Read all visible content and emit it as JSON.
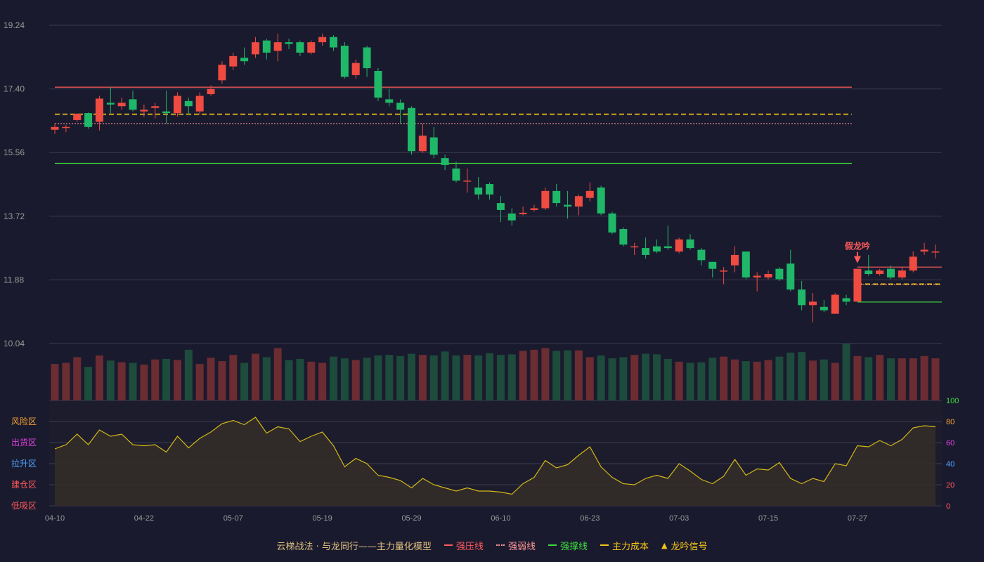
{
  "chart_data": {
    "type": "candlestick",
    "x_labels": [
      "04-10",
      "04-22",
      "05-07",
      "05-19",
      "05-29",
      "06-10",
      "06-23",
      "07-03",
      "07-15",
      "07-27"
    ],
    "y_ticks": [
      "19.24",
      "17.40",
      "15.56",
      "13.72",
      "11.88",
      "10.04"
    ],
    "ylim": [
      10.04,
      19.24
    ],
    "candles": [
      [
        16.22,
        16.3,
        16.4,
        16.1
      ],
      [
        16.28,
        16.3,
        16.36,
        16.15
      ],
      [
        16.5,
        16.68,
        16.7,
        16.45
      ],
      [
        16.7,
        16.3,
        16.72,
        16.25
      ],
      [
        16.45,
        17.12,
        17.2,
        16.2
      ],
      [
        17.0,
        16.95,
        17.45,
        16.7
      ],
      [
        16.9,
        17.0,
        17.15,
        16.8
      ],
      [
        17.1,
        16.8,
        17.35,
        16.75
      ],
      [
        16.75,
        16.8,
        16.95,
        16.6
      ],
      [
        16.85,
        16.9,
        17.0,
        16.55
      ],
      [
        16.75,
        16.7,
        17.35,
        16.4
      ],
      [
        16.7,
        17.2,
        17.3,
        16.6
      ],
      [
        17.05,
        16.9,
        17.15,
        16.65
      ],
      [
        16.75,
        17.2,
        17.3,
        16.65
      ],
      [
        17.25,
        17.4,
        17.5,
        17.2
      ],
      [
        17.65,
        18.1,
        18.2,
        17.55
      ],
      [
        18.05,
        18.35,
        18.45,
        17.95
      ],
      [
        18.3,
        18.2,
        18.6,
        18.1
      ],
      [
        18.4,
        18.75,
        18.9,
        18.3
      ],
      [
        18.8,
        18.45,
        18.85,
        18.25
      ],
      [
        18.5,
        18.75,
        19.0,
        18.2
      ],
      [
        18.75,
        18.7,
        18.85,
        18.55
      ],
      [
        18.75,
        18.45,
        18.8,
        18.35
      ],
      [
        18.45,
        18.75,
        18.8,
        18.4
      ],
      [
        18.75,
        18.9,
        19.0,
        18.65
      ],
      [
        18.9,
        18.6,
        18.95,
        18.5
      ],
      [
        18.65,
        17.75,
        18.75,
        17.7
      ],
      [
        17.8,
        18.15,
        18.25,
        17.7
      ],
      [
        18.6,
        18.0,
        18.65,
        17.75
      ],
      [
        17.92,
        17.15,
        18.0,
        17.05
      ],
      [
        17.1,
        17.0,
        17.4,
        16.9
      ],
      [
        17.0,
        16.8,
        17.1,
        16.4
      ],
      [
        16.85,
        15.6,
        16.9,
        15.5
      ],
      [
        15.6,
        16.05,
        16.4,
        15.55
      ],
      [
        16.0,
        15.5,
        16.3,
        15.4
      ],
      [
        15.4,
        15.2,
        15.5,
        15.05
      ],
      [
        15.1,
        14.75,
        15.3,
        14.7
      ],
      [
        14.75,
        14.75,
        15.1,
        14.4
      ],
      [
        14.55,
        14.35,
        14.85,
        14.2
      ],
      [
        14.65,
        14.35,
        14.7,
        14.2
      ],
      [
        14.1,
        13.9,
        14.3,
        13.55
      ],
      [
        13.8,
        13.6,
        13.95,
        13.45
      ],
      [
        13.78,
        13.82,
        14.0,
        13.75
      ],
      [
        13.9,
        13.95,
        14.05,
        13.85
      ],
      [
        13.95,
        14.45,
        14.55,
        13.9
      ],
      [
        14.45,
        14.1,
        14.65,
        14.0
      ],
      [
        14.05,
        14.0,
        14.45,
        13.65
      ],
      [
        14.0,
        14.3,
        14.35,
        13.75
      ],
      [
        14.25,
        14.45,
        14.7,
        14.15
      ],
      [
        14.55,
        13.8,
        14.6,
        13.75
      ],
      [
        13.8,
        13.25,
        13.85,
        13.2
      ],
      [
        13.35,
        12.9,
        13.4,
        12.85
      ],
      [
        12.85,
        12.85,
        12.95,
        12.6
      ],
      [
        12.8,
        12.6,
        13.1,
        12.5
      ],
      [
        12.85,
        12.7,
        13.05,
        12.65
      ],
      [
        12.85,
        12.8,
        13.45,
        12.75
      ],
      [
        12.7,
        13.05,
        13.1,
        12.65
      ],
      [
        13.05,
        12.8,
        13.2,
        12.75
      ],
      [
        12.75,
        12.45,
        12.8,
        12.3
      ],
      [
        12.4,
        12.2,
        12.4,
        11.95
      ],
      [
        12.15,
        12.15,
        12.25,
        11.75
      ],
      [
        12.3,
        12.6,
        12.85,
        12.1
      ],
      [
        12.7,
        11.95,
        12.7,
        11.9
      ],
      [
        11.95,
        12.0,
        12.1,
        11.55
      ],
      [
        11.95,
        12.05,
        12.15,
        11.9
      ],
      [
        12.2,
        11.9,
        12.25,
        11.85
      ],
      [
        12.35,
        11.6,
        12.75,
        11.55
      ],
      [
        11.6,
        11.15,
        11.85,
        11.0
      ],
      [
        11.15,
        11.25,
        11.5,
        10.65
      ],
      [
        11.1,
        11.0,
        11.3,
        10.95
      ],
      [
        10.9,
        11.45,
        11.5,
        10.9
      ],
      [
        11.35,
        11.25,
        11.45,
        11.15
      ],
      [
        11.25,
        12.2,
        12.2,
        11.25
      ],
      [
        12.15,
        12.05,
        12.6,
        12.0
      ],
      [
        12.05,
        12.15,
        12.2,
        12.0
      ],
      [
        12.2,
        11.95,
        12.3,
        11.9
      ],
      [
        11.95,
        12.15,
        12.25,
        11.9
      ],
      [
        12.15,
        12.55,
        12.7,
        12.1
      ],
      [
        12.7,
        12.75,
        12.95,
        12.6
      ],
      [
        12.7,
        12.7,
        12.9,
        12.5
      ]
    ],
    "volume_max": 100,
    "volume": [
      64,
      66,
      76,
      59,
      79,
      70,
      67,
      66,
      63,
      72,
      73,
      71,
      89,
      64,
      75,
      69,
      80,
      66,
      82,
      76,
      92,
      71,
      73,
      68,
      66,
      77,
      74,
      71,
      75,
      79,
      80,
      78,
      82,
      80,
      79,
      86,
      79,
      80,
      79,
      83,
      80,
      81,
      87,
      89,
      92,
      87,
      88,
      88,
      76,
      79,
      74,
      76,
      80,
      82,
      81,
      73,
      68,
      66,
      67,
      75,
      77,
      72,
      69,
      68,
      71,
      77,
      84,
      85,
      70,
      72,
      66,
      100,
      78,
      76,
      80,
      74,
      74,
      74,
      78,
      74
    ],
    "indicator": [
      54,
      58,
      68,
      58,
      72,
      66,
      68,
      58,
      57,
      58,
      51,
      66,
      55,
      64,
      70,
      78,
      81,
      77,
      84,
      69,
      75,
      73,
      61,
      66,
      70,
      57,
      37,
      45,
      40,
      29,
      27,
      24,
      17,
      26,
      20,
      17,
      14,
      17,
      14,
      14,
      13,
      11,
      21,
      27,
      43,
      36,
      39,
      48,
      56,
      37,
      27,
      21,
      20,
      26,
      29,
      26,
      40,
      33,
      25,
      21,
      28,
      44,
      29,
      35,
      34,
      41,
      26,
      21,
      26,
      23,
      40,
      38,
      57,
      56,
      62,
      57,
      63,
      74,
      76,
      75
    ],
    "indicator_ylim": [
      0,
      100
    ],
    "indicator_ticks": [
      "100",
      "80",
      "60",
      "40",
      "20",
      "0"
    ],
    "zone_labels": [
      {
        "text": "风险区",
        "value": 80,
        "color": "#f0a030"
      },
      {
        "text": "出货区",
        "value": 60,
        "color": "#e040e0"
      },
      {
        "text": "拉升区",
        "value": 40,
        "color": "#4da3ff"
      },
      {
        "text": "建仓区",
        "value": 20,
        "color": "#ff5a5a"
      },
      {
        "text": "低吸区",
        "value": 0,
        "color": "#ff5a5a"
      }
    ],
    "lines": [
      {
        "name": "强压线",
        "y": 17.45,
        "from": 0,
        "to": 72,
        "color": "#ff5a5a",
        "style": "solid"
      },
      {
        "name": "强弱线",
        "y": 16.4,
        "from": 0,
        "to": 72,
        "color": "#ff9999",
        "style": "dotted"
      },
      {
        "name": "主力成本",
        "y": 16.67,
        "from": 0,
        "to": 72,
        "color": "#f5c518",
        "style": "dashed"
      },
      {
        "name": "强撑线",
        "y": 15.25,
        "from": 0,
        "to": 72,
        "color": "#3ddc3d",
        "style": "solid"
      },
      {
        "name": "强压线",
        "y": 12.25,
        "from": 72,
        "to": 80,
        "color": "#ff5a5a",
        "style": "solid"
      },
      {
        "name": "强弱线",
        "y": 11.74,
        "from": 72,
        "to": 80,
        "color": "#ff9999",
        "style": "dotted"
      },
      {
        "name": "主力成本",
        "y": 11.76,
        "from": 72,
        "to": 80,
        "color": "#f5c518",
        "style": "dashed"
      },
      {
        "name": "强撑线",
        "y": 11.24,
        "from": 72,
        "to": 80,
        "color": "#3ddc3d",
        "style": "solid"
      }
    ],
    "signal": {
      "index": 72,
      "label": "假龙吟",
      "color": "#ff5a5a"
    }
  },
  "colors": {
    "up": "#ef4b41",
    "down": "#1fb868",
    "vol_up": "#6b2c32",
    "vol_down": "#1d4b3c",
    "grid": "#3a3d4e",
    "axis_text": "#999999",
    "indicator_line": "#d4b81a",
    "indicator_fill": "#332e28"
  },
  "legend": {
    "title": "云梯战法 · 与龙同行——主力量化模型",
    "items": [
      {
        "label": "强压线",
        "color": "#ff5a5a",
        "style": "solid"
      },
      {
        "label": "强弱线",
        "color": "#ff9999",
        "style": "dotted"
      },
      {
        "label": "强撑线",
        "color": "#3ddc3d",
        "style": "solid"
      },
      {
        "label": "主力成本",
        "color": "#f5c518",
        "style": "dashed"
      },
      {
        "label": "龙吟信号",
        "color": "#f5c518",
        "style": "triangle"
      }
    ]
  }
}
